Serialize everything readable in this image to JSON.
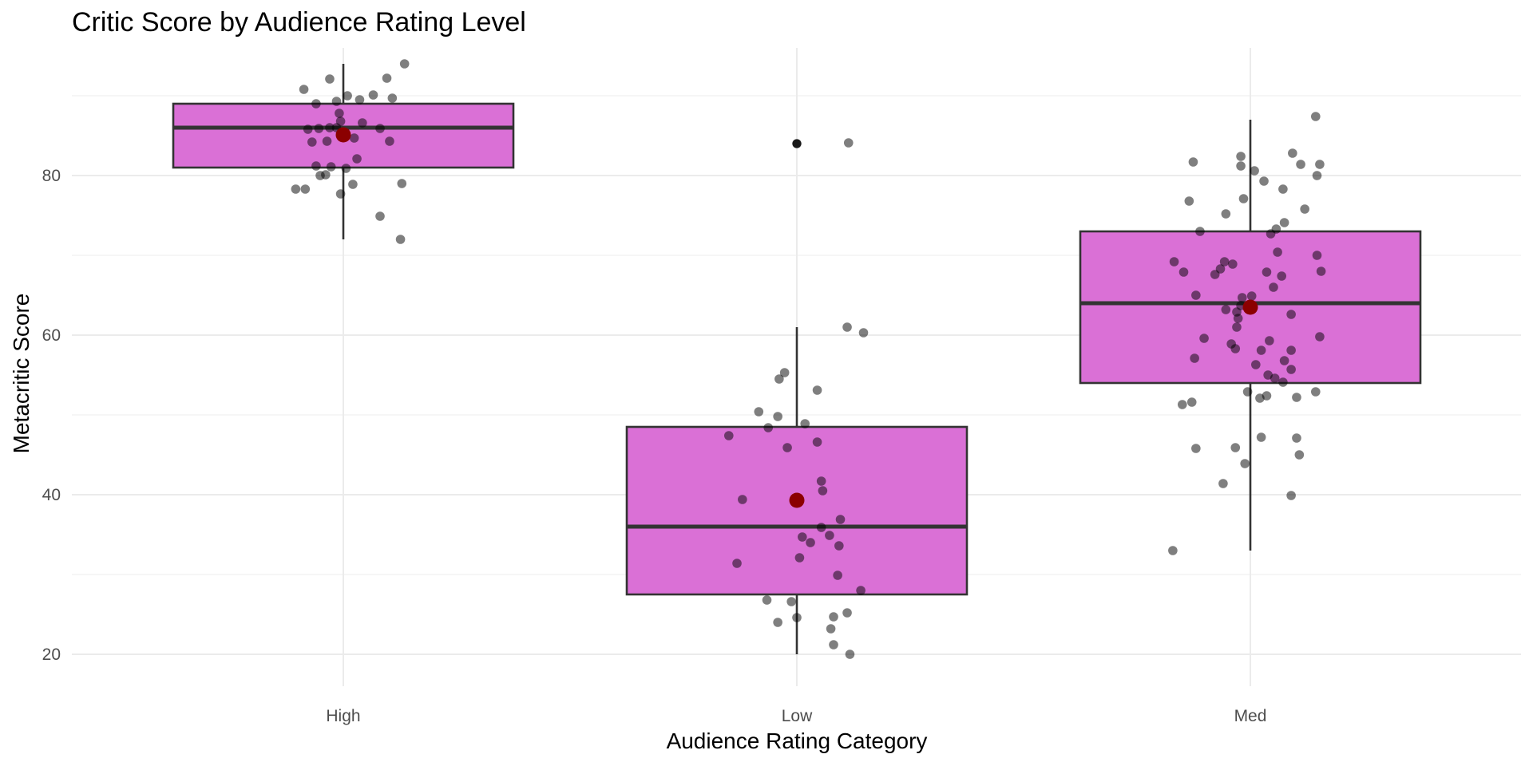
{
  "chart_data": {
    "type": "box",
    "title": "Critic Score by Audience Rating Level",
    "xlabel": "Audience Rating Category",
    "ylabel": "Metacritic Score",
    "categories": [
      "High",
      "Low",
      "Med"
    ],
    "ylim": [
      16,
      96
    ],
    "yticks": [
      20,
      40,
      60,
      80
    ],
    "grid": true,
    "legend": "none",
    "box_fill": "#da70d6",
    "box_stroke": "#333333",
    "point_color": "#000000",
    "mean_color": "#8b0000",
    "boxes": [
      {
        "category": "High",
        "whisker_low": 72,
        "q1": 81,
        "median": 86,
        "q3": 89,
        "whisker_high": 94,
        "mean": 85.1,
        "outliers": []
      },
      {
        "category": "Low",
        "whisker_low": 20,
        "q1": 27.5,
        "median": 36,
        "q3": 48.5,
        "whisker_high": 61,
        "mean": 39.3,
        "outliers": [
          84
        ]
      },
      {
        "category": "Med",
        "whisker_low": 33,
        "q1": 54,
        "median": 64,
        "q3": 73,
        "whisker_high": 87,
        "mean": 63.5,
        "outliers": []
      }
    ],
    "points": {
      "High": [
        {
          "dx": -0.29,
          "y": 90.8
        },
        {
          "dx": -0.1,
          "y": 92.1
        },
        {
          "dx": 0.03,
          "y": 90.0
        },
        {
          "dx": 0.12,
          "y": 89.5
        },
        {
          "dx": 0.22,
          "y": 90.1
        },
        {
          "dx": 0.36,
          "y": 89.7
        },
        {
          "dx": 0.32,
          "y": 92.2
        },
        {
          "dx": 0.45,
          "y": 94.0
        },
        {
          "dx": -0.2,
          "y": 89.0
        },
        {
          "dx": -0.05,
          "y": 89.3
        },
        {
          "dx": -0.03,
          "y": 87.8
        },
        {
          "dx": -0.02,
          "y": 86.8
        },
        {
          "dx": 0.14,
          "y": 86.6
        },
        {
          "dx": 0.27,
          "y": 85.9
        },
        {
          "dx": -0.26,
          "y": 85.8
        },
        {
          "dx": -0.18,
          "y": 85.9
        },
        {
          "dx": -0.1,
          "y": 86.0
        },
        {
          "dx": -0.05,
          "y": 86.0
        },
        {
          "dx": -0.23,
          "y": 84.2
        },
        {
          "dx": -0.12,
          "y": 84.3
        },
        {
          "dx": 0.08,
          "y": 84.7
        },
        {
          "dx": 0.34,
          "y": 84.3
        },
        {
          "dx": 0.1,
          "y": 82.1
        },
        {
          "dx": -0.2,
          "y": 81.2
        },
        {
          "dx": -0.09,
          "y": 81.1
        },
        {
          "dx": 0.02,
          "y": 80.9
        },
        {
          "dx": -0.17,
          "y": 80.0
        },
        {
          "dx": -0.13,
          "y": 80.1
        },
        {
          "dx": 0.07,
          "y": 78.9
        },
        {
          "dx": 0.43,
          "y": 79.0
        },
        {
          "dx": -0.35,
          "y": 78.3
        },
        {
          "dx": -0.28,
          "y": 78.3
        },
        {
          "dx": -0.02,
          "y": 77.7
        },
        {
          "dx": 0.27,
          "y": 74.9
        },
        {
          "dx": 0.42,
          "y": 72.0
        }
      ],
      "Low": [
        {
          "dx": 0.0,
          "y": 84.0
        },
        {
          "dx": 0.38,
          "y": 84.1
        },
        {
          "dx": 0.37,
          "y": 61.0
        },
        {
          "dx": 0.49,
          "y": 60.3
        },
        {
          "dx": -0.09,
          "y": 55.3
        },
        {
          "dx": -0.13,
          "y": 54.5
        },
        {
          "dx": 0.15,
          "y": 53.1
        },
        {
          "dx": -0.28,
          "y": 50.4
        },
        {
          "dx": -0.14,
          "y": 49.8
        },
        {
          "dx": 0.06,
          "y": 48.9
        },
        {
          "dx": -0.21,
          "y": 48.4
        },
        {
          "dx": -0.5,
          "y": 47.4
        },
        {
          "dx": 0.15,
          "y": 46.6
        },
        {
          "dx": -0.07,
          "y": 45.9
        },
        {
          "dx": 0.18,
          "y": 41.7
        },
        {
          "dx": 0.19,
          "y": 40.5
        },
        {
          "dx": -0.4,
          "y": 39.4
        },
        {
          "dx": 0.32,
          "y": 36.9
        },
        {
          "dx": 0.18,
          "y": 35.9
        },
        {
          "dx": 0.04,
          "y": 34.7
        },
        {
          "dx": 0.24,
          "y": 34.9
        },
        {
          "dx": 0.1,
          "y": 34.0
        },
        {
          "dx": 0.31,
          "y": 33.6
        },
        {
          "dx": 0.02,
          "y": 32.1
        },
        {
          "dx": -0.44,
          "y": 31.4
        },
        {
          "dx": 0.3,
          "y": 29.9
        },
        {
          "dx": 0.47,
          "y": 28.0
        },
        {
          "dx": -0.22,
          "y": 26.8
        },
        {
          "dx": -0.04,
          "y": 26.6
        },
        {
          "dx": 0.37,
          "y": 25.2
        },
        {
          "dx": 0.27,
          "y": 24.7
        },
        {
          "dx": 0.0,
          "y": 24.6
        },
        {
          "dx": -0.14,
          "y": 24.0
        },
        {
          "dx": 0.25,
          "y": 23.2
        },
        {
          "dx": 0.27,
          "y": 21.2
        },
        {
          "dx": 0.39,
          "y": 20.0
        }
      ],
      "Med": [
        {
          "dx": 0.48,
          "y": 87.4
        },
        {
          "dx": -0.07,
          "y": 82.4
        },
        {
          "dx": 0.31,
          "y": 82.8
        },
        {
          "dx": -0.42,
          "y": 81.7
        },
        {
          "dx": -0.07,
          "y": 81.2
        },
        {
          "dx": 0.03,
          "y": 80.6
        },
        {
          "dx": 0.37,
          "y": 81.4
        },
        {
          "dx": 0.51,
          "y": 81.4
        },
        {
          "dx": 0.49,
          "y": 80.0
        },
        {
          "dx": 0.1,
          "y": 79.3
        },
        {
          "dx": 0.24,
          "y": 78.3
        },
        {
          "dx": -0.05,
          "y": 77.1
        },
        {
          "dx": -0.45,
          "y": 76.8
        },
        {
          "dx": 0.4,
          "y": 75.8
        },
        {
          "dx": -0.18,
          "y": 75.2
        },
        {
          "dx": 0.25,
          "y": 74.1
        },
        {
          "dx": 0.19,
          "y": 73.3
        },
        {
          "dx": -0.37,
          "y": 73.0
        },
        {
          "dx": 0.15,
          "y": 72.7
        },
        {
          "dx": 0.2,
          "y": 70.4
        },
        {
          "dx": 0.49,
          "y": 70.0
        },
        {
          "dx": -0.56,
          "y": 69.2
        },
        {
          "dx": -0.19,
          "y": 69.2
        },
        {
          "dx": -0.13,
          "y": 68.9
        },
        {
          "dx": -0.22,
          "y": 68.3
        },
        {
          "dx": -0.49,
          "y": 67.9
        },
        {
          "dx": -0.26,
          "y": 67.6
        },
        {
          "dx": 0.12,
          "y": 67.9
        },
        {
          "dx": 0.23,
          "y": 67.4
        },
        {
          "dx": 0.52,
          "y": 68.0
        },
        {
          "dx": 0.17,
          "y": 66.0
        },
        {
          "dx": -0.4,
          "y": 65.0
        },
        {
          "dx": -0.06,
          "y": 64.7
        },
        {
          "dx": 0.01,
          "y": 64.9
        },
        {
          "dx": -0.07,
          "y": 63.7
        },
        {
          "dx": -0.18,
          "y": 63.2
        },
        {
          "dx": -0.1,
          "y": 62.9
        },
        {
          "dx": 0.3,
          "y": 62.6
        },
        {
          "dx": -0.09,
          "y": 62.1
        },
        {
          "dx": -0.1,
          "y": 61.0
        },
        {
          "dx": -0.34,
          "y": 59.6
        },
        {
          "dx": 0.14,
          "y": 59.3
        },
        {
          "dx": 0.51,
          "y": 59.8
        },
        {
          "dx": -0.14,
          "y": 58.9
        },
        {
          "dx": -0.11,
          "y": 58.3
        },
        {
          "dx": 0.08,
          "y": 58.1
        },
        {
          "dx": 0.3,
          "y": 58.1
        },
        {
          "dx": -0.41,
          "y": 57.1
        },
        {
          "dx": 0.25,
          "y": 56.8
        },
        {
          "dx": 0.04,
          "y": 56.3
        },
        {
          "dx": 0.3,
          "y": 55.7
        },
        {
          "dx": 0.13,
          "y": 55.0
        },
        {
          "dx": 0.18,
          "y": 54.6
        },
        {
          "dx": 0.24,
          "y": 54.1
        },
        {
          "dx": -0.02,
          "y": 52.9
        },
        {
          "dx": 0.12,
          "y": 52.4
        },
        {
          "dx": 0.07,
          "y": 52.1
        },
        {
          "dx": 0.48,
          "y": 52.9
        },
        {
          "dx": 0.34,
          "y": 52.2
        },
        {
          "dx": -0.5,
          "y": 51.3
        },
        {
          "dx": -0.43,
          "y": 51.6
        },
        {
          "dx": 0.34,
          "y": 47.1
        },
        {
          "dx": -0.4,
          "y": 45.8
        },
        {
          "dx": -0.11,
          "y": 45.9
        },
        {
          "dx": 0.36,
          "y": 45.0
        },
        {
          "dx": -0.04,
          "y": 43.9
        },
        {
          "dx": -0.2,
          "y": 41.4
        },
        {
          "dx": 0.08,
          "y": 47.2
        },
        {
          "dx": 0.3,
          "y": 39.9
        },
        {
          "dx": -0.57,
          "y": 33.0
        }
      ]
    }
  }
}
